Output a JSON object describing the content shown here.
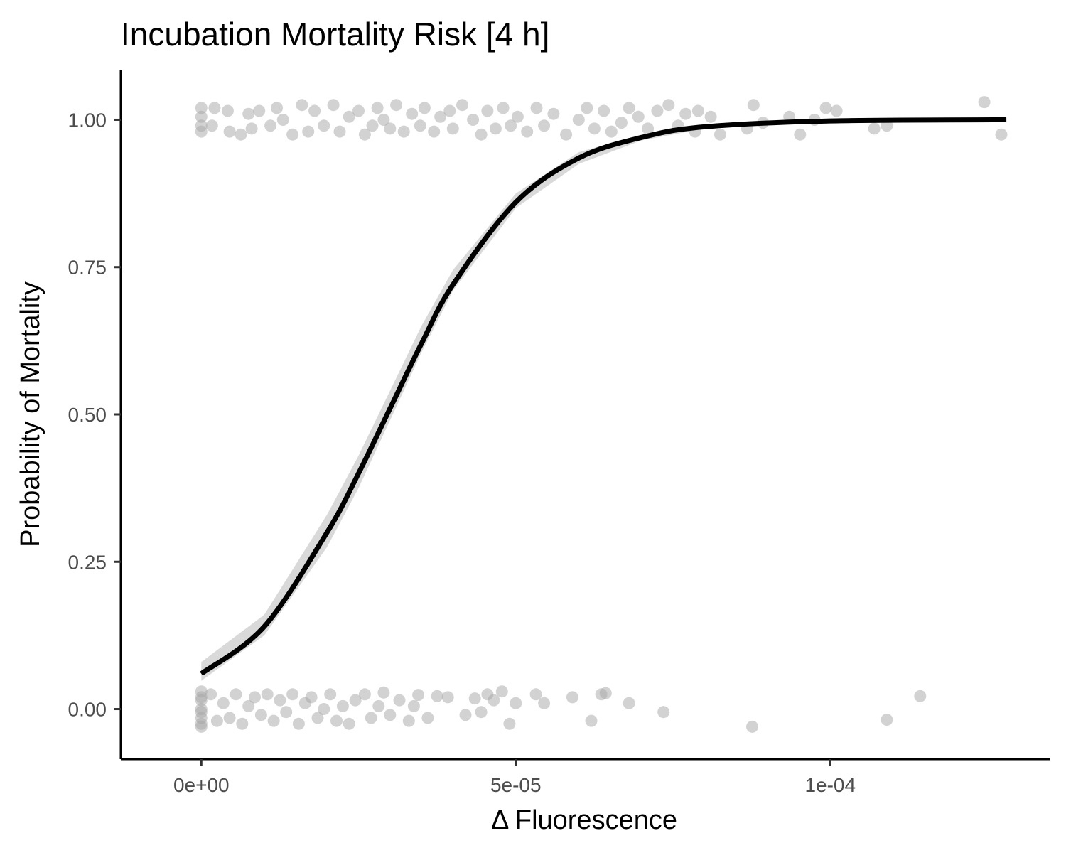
{
  "chart_data": {
    "type": "scatter",
    "title": "Incubation Mortality Risk [4 h]",
    "xlabel": "Δ Fluorescence",
    "ylabel": "Probability of Mortality",
    "xlim": [
      -1.28e-05,
      0.000135
    ],
    "ylim": [
      -0.085,
      1.085
    ],
    "x_ticks": [
      {
        "value": 0,
        "label": "0e+00"
      },
      {
        "value": 5e-05,
        "label": "5e-05"
      },
      {
        "value": 0.0001,
        "label": "1e-04"
      }
    ],
    "y_ticks": [
      {
        "value": 0,
        "label": "0.00"
      },
      {
        "value": 0.25,
        "label": "0.25"
      },
      {
        "value": 0.5,
        "label": "0.50"
      },
      {
        "value": 0.75,
        "label": "0.75"
      },
      {
        "value": 1,
        "label": "1.00"
      }
    ],
    "grid": false,
    "colors": {
      "points": "#a6a6a6",
      "curve": "#000000",
      "ribbon": "#d9d9d9"
    },
    "series": [
      {
        "kind": "fitted-logistic-curve",
        "x": [
          0.0,
          1e-05,
          2e-05,
          2.5e-05,
          3e-05,
          3.5e-05,
          4e-05,
          5e-05,
          6e-05,
          7e-05,
          8e-05,
          0.0001,
          0.000128
        ],
        "y": [
          0.06,
          0.14,
          0.3,
          0.4,
          0.51,
          0.62,
          0.72,
          0.86,
          0.935,
          0.97,
          0.988,
          0.998,
          1.0
        ],
        "lower": [
          0.048,
          0.125,
          0.275,
          0.375,
          0.49,
          0.605,
          0.71,
          0.85,
          0.925,
          0.965,
          0.985,
          0.997,
          1.0
        ],
        "upper": [
          0.08,
          0.16,
          0.33,
          0.43,
          0.54,
          0.65,
          0.745,
          0.875,
          0.945,
          0.975,
          0.99,
          0.999,
          1.0
        ]
      },
      {
        "kind": "jittered-observations",
        "outcome": 1,
        "x": [
          0.0,
          0.0,
          0.0,
          0.0,
          1.7e-06,
          2.1e-06,
          4.2e-06,
          4.5e-06,
          6.3e-06,
          7.5e-06,
          8e-06,
          9.2e-06,
          1.1e-05,
          1.2e-05,
          1.3e-05,
          1.45e-05,
          1.6e-05,
          1.7e-05,
          1.8e-05,
          1.95e-05,
          2.1e-05,
          2.2e-05,
          2.35e-05,
          2.5e-05,
          2.6e-05,
          2.72e-05,
          2.8e-05,
          2.9e-05,
          3e-05,
          3.1e-05,
          3.22e-05,
          3.35e-05,
          3.48e-05,
          3.55e-05,
          3.7e-05,
          3.8e-05,
          3.95e-05,
          4e-05,
          4.15e-05,
          4.32e-05,
          4.45e-05,
          4.55e-05,
          4.68e-05,
          4.8e-05,
          4.92e-05,
          5.03e-05,
          5.18e-05,
          5.33e-05,
          5.45e-05,
          5.6e-05,
          5.8e-05,
          6e-05,
          6.13e-05,
          6.25e-05,
          6.4e-05,
          6.52e-05,
          6.68e-05,
          6.8e-05,
          6.95e-05,
          7.1e-05,
          7.25e-05,
          7.43e-05,
          7.58e-05,
          7.7e-05,
          7.85e-05,
          7.9e-05,
          8.1e-05,
          8.25e-05,
          8.68e-05,
          8.78e-05,
          8.93e-05,
          9.35e-05,
          9.52e-05,
          9.75e-05,
          9.93e-05,
          0.000101,
          0.000107,
          0.000109,
          0.0001245,
          0.0001272
        ],
        "y": [
          1.02,
          1.005,
          0.99,
          0.98,
          0.99,
          1.02,
          1.015,
          0.98,
          0.975,
          1.01,
          0.985,
          1.015,
          0.99,
          1.02,
          1.0,
          0.975,
          1.025,
          0.98,
          1.015,
          0.99,
          1.025,
          0.98,
          1.005,
          1.015,
          0.975,
          0.99,
          1.02,
          1.0,
          0.985,
          1.025,
          0.98,
          1.01,
          0.99,
          1.02,
          0.98,
          1.005,
          1.015,
          0.985,
          1.025,
          1.0,
          0.975,
          1.015,
          0.985,
          1.02,
          0.99,
          1.005,
          0.98,
          1.02,
          0.99,
          1.01,
          0.975,
          1.0,
          1.02,
          0.985,
          1.015,
          0.98,
          0.995,
          1.02,
          1.005,
          0.985,
          1.015,
          1.025,
          0.99,
          1.01,
          0.98,
          1.015,
          1.005,
          0.975,
          0.985,
          1.025,
          0.995,
          1.005,
          0.975,
          1.0,
          1.02,
          1.015,
          0.985,
          0.99,
          1.03,
          0.975
        ]
      },
      {
        "kind": "jittered-observations",
        "outcome": 0,
        "x": [
          0.0,
          0.0,
          0.0,
          0.0,
          0.0,
          0.0,
          0.0,
          0.0,
          1.5e-06,
          2.5e-06,
          3.5e-06,
          4.5e-06,
          5.5e-06,
          6.5e-06,
          7.5e-06,
          8.5e-06,
          9.5e-06,
          1.05e-05,
          1.15e-05,
          1.25e-05,
          1.35e-05,
          1.45e-05,
          1.55e-05,
          1.65e-05,
          1.75e-05,
          1.85e-05,
          1.95e-05,
          2.05e-05,
          2.15e-05,
          2.25e-05,
          2.35e-05,
          2.45e-05,
          2.6e-05,
          2.7e-05,
          2.82e-05,
          2.9e-05,
          3e-05,
          3.15e-05,
          3.3e-05,
          3.38e-05,
          3.45e-05,
          3.6e-05,
          3.75e-05,
          3.92e-05,
          4.2e-05,
          4.35e-05,
          4.45e-05,
          4.55e-05,
          4.65e-05,
          4.78e-05,
          4.9e-05,
          5e-05,
          5.32e-05,
          5.45e-05,
          5.9e-05,
          6.2e-05,
          6.36e-05,
          6.43e-05,
          6.8e-05,
          7.35e-05,
          8.76e-05,
          0.000109,
          0.0001143
        ],
        "y": [
          0.03,
          0.015,
          0.0,
          -0.015,
          -0.03,
          0.02,
          -0.005,
          -0.025,
          0.025,
          -0.02,
          0.01,
          -0.015,
          0.025,
          -0.025,
          0.005,
          0.02,
          -0.01,
          0.025,
          -0.02,
          0.015,
          -0.005,
          0.025,
          -0.025,
          0.01,
          0.02,
          -0.015,
          0.0,
          0.025,
          -0.02,
          0.005,
          -0.025,
          0.015,
          0.025,
          -0.015,
          0.005,
          0.028,
          -0.01,
          0.015,
          -0.02,
          0.005,
          0.024,
          -0.015,
          0.022,
          0.02,
          -0.01,
          0.018,
          -0.005,
          0.025,
          0.015,
          0.03,
          -0.025,
          0.01,
          0.025,
          0.01,
          0.02,
          -0.02,
          0.025,
          0.027,
          0.01,
          -0.005,
          -0.03,
          -0.018,
          0.022
        ]
      }
    ]
  }
}
